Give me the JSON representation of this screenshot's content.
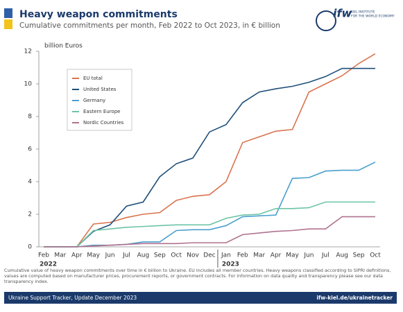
{
  "header": {
    "title": "Heavy weapon commitments",
    "subtitle": "Cumulative commitments per month, Feb 2022 to Oct 2023, in € billion",
    "logo": "ifw",
    "logo_text": [
      "KIEL INSTITUTE",
      "FOR THE WORLD ECONOMY"
    ]
  },
  "chart_data": {
    "type": "line",
    "y_label": "billion Euros",
    "categories": [
      "Feb",
      "Mar",
      "Apr",
      "May",
      "Jun",
      "Jul",
      "Aug",
      "Sep",
      "Oct",
      "Nov",
      "Dec",
      "Jan",
      "Feb",
      "Mar",
      "Apr",
      "May",
      "Jun",
      "Jul",
      "Aug",
      "Sep",
      "Oct"
    ],
    "year_labels": [
      "2022",
      "2023"
    ],
    "ylim": [
      0,
      12
    ],
    "yticks": [
      0,
      2,
      4,
      6,
      8,
      10,
      12
    ],
    "grid": false,
    "series": [
      {
        "name": "EU total",
        "color": "#d9734e",
        "values": [
          0,
          0,
          0,
          1.4,
          1.5,
          1.8,
          2.0,
          2.1,
          2.85,
          3.1,
          3.2,
          4.0,
          6.4,
          6.75,
          7.1,
          7.2,
          9.5,
          10.0,
          10.5,
          11.25,
          11.85
        ]
      },
      {
        "name": "United States",
        "color": "#1f4e79",
        "values": [
          0,
          0,
          0,
          0.95,
          1.35,
          2.5,
          2.75,
          4.3,
          5.1,
          5.45,
          7.05,
          7.5,
          8.85,
          9.5,
          9.7,
          9.85,
          10.1,
          10.45,
          10.95,
          10.95,
          10.95
        ]
      },
      {
        "name": "Germany",
        "color": "#4a9fd0",
        "values": [
          0,
          0,
          0,
          0.1,
          0.1,
          0.15,
          0.3,
          0.3,
          1.0,
          1.05,
          1.05,
          1.3,
          1.85,
          1.9,
          1.95,
          4.2,
          4.25,
          4.65,
          4.7,
          4.7,
          5.2
        ]
      },
      {
        "name": "Eastern Europe",
        "color": "#6cc4a4",
        "values": [
          0,
          0,
          0,
          1.0,
          1.1,
          1.2,
          1.25,
          1.3,
          1.35,
          1.35,
          1.35,
          1.75,
          1.95,
          2.0,
          2.35,
          2.35,
          2.4,
          2.75,
          2.75,
          2.75,
          2.75
        ]
      },
      {
        "name": "Nordic Countries",
        "color": "#b0718e",
        "values": [
          0,
          0,
          0,
          0.05,
          0.1,
          0.15,
          0.2,
          0.2,
          0.2,
          0.25,
          0.25,
          0.25,
          0.75,
          0.85,
          0.95,
          1.0,
          1.1,
          1.1,
          1.85,
          1.85,
          1.85
        ]
      }
    ]
  },
  "footnote": "Cumulative value of heavy weapon commitments over time in € billion to Ukraine. EU includes all member countries. Heavy weapons classified according to SIPRI definitions, values are computed based on manufacturer prices, procurement reports, or government contracts. For information on data quality and transparency please see our data transparency index.",
  "footer": {
    "left": "Ukraine Support Tracker, Update December 2023",
    "right": "ifw-kiel.de/ukrainetracker"
  }
}
